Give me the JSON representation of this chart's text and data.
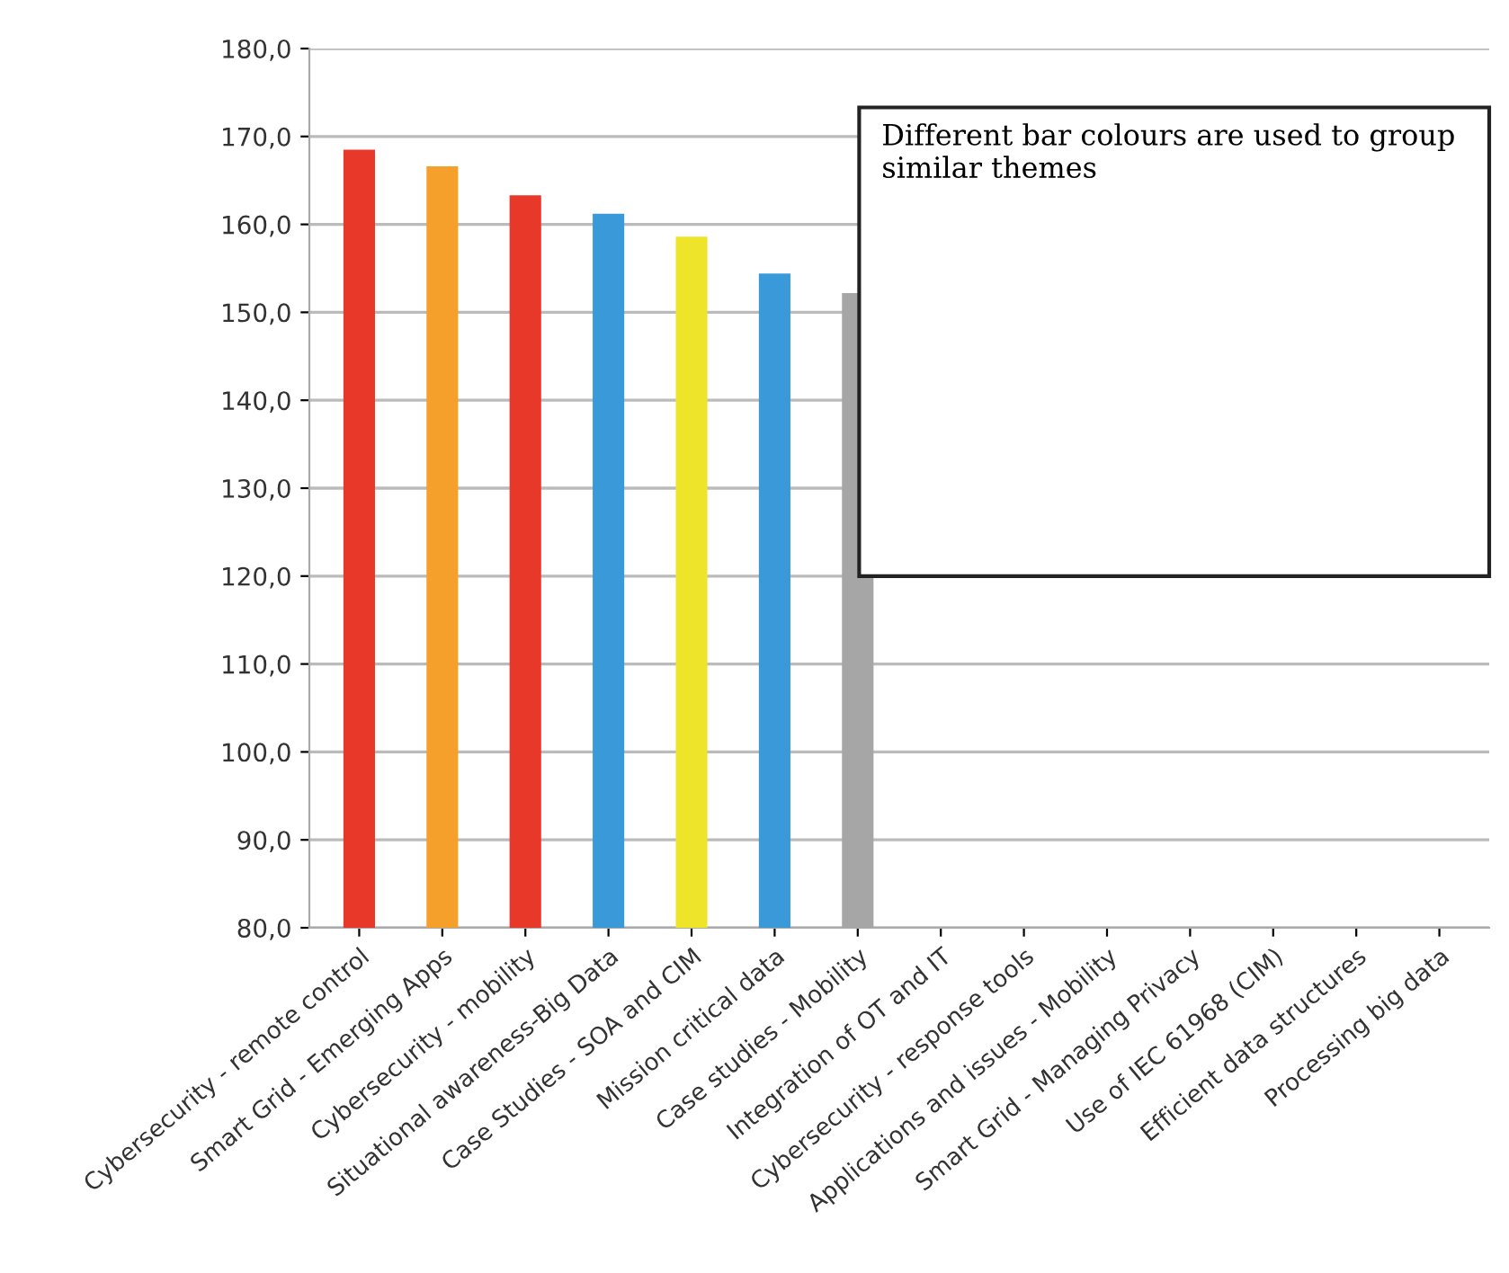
{
  "chart_data": {
    "type": "bar",
    "categories": [
      "Cybersecurity - remote control",
      "Smart Grid - Emerging Apps",
      "Cybersecurity - mobility",
      "Situational awareness-Big Data",
      "Case Studies - SOA and CIM",
      "Mission critical data",
      "Case studies - Mobility",
      "Integration of OT and IT",
      "Cybersecurity - response tools",
      "Applications and issues - Mobility",
      "Smart Grid - Managing Privacy",
      "Use of IEC 61968 (CIM)",
      "Efficient data structures",
      "Processing big data"
    ],
    "values": [
      168.5,
      166.6,
      163.3,
      161.2,
      158.6,
      154.4,
      152.2,
      null,
      null,
      null,
      null,
      null,
      null,
      null
    ],
    "colors": [
      "#e8382a",
      "#f5a02a",
      "#e8382a",
      "#3a9ad9",
      "#eee52a",
      "#3a9ad9",
      "#a6a6a6",
      "#7cc04a",
      "#e8382a",
      "#a6a6a6",
      "#f5a02a",
      "#eee52a",
      "#3a9ad9",
      "#3a9ad9"
    ],
    "ylim": [
      80,
      180
    ],
    "yticks": [
      {
        "value": 80,
        "label": "80,0"
      },
      {
        "value": 90,
        "label": "90,0"
      },
      {
        "value": 100,
        "label": "100,0"
      },
      {
        "value": 110,
        "label": "110,0"
      },
      {
        "value": 120,
        "label": "120,0"
      },
      {
        "value": 130,
        "label": "130,0"
      },
      {
        "value": 140,
        "label": "140,0"
      },
      {
        "value": 150,
        "label": "150,0"
      },
      {
        "value": 160,
        "label": "160,0"
      },
      {
        "value": 170,
        "label": "170,0"
      },
      {
        "value": 180,
        "label": "180,0"
      }
    ],
    "grid": "y",
    "annotations": [
      "Different bar colours are used to group similar themes"
    ]
  }
}
